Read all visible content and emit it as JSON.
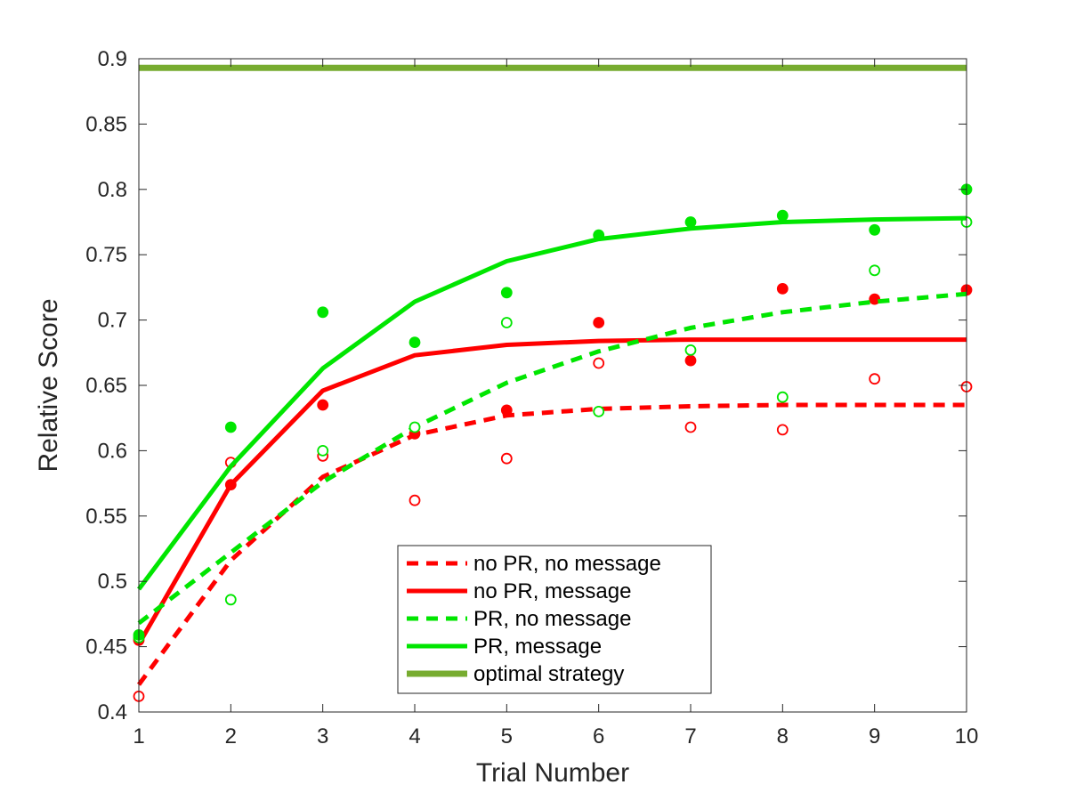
{
  "chart_data": {
    "type": "line",
    "xlabel": "Trial Number",
    "ylabel": "Relative Score",
    "xlim": [
      1,
      10
    ],
    "ylim": [
      0.4,
      0.9
    ],
    "xticks": [
      "1",
      "2",
      "3",
      "4",
      "5",
      "6",
      "7",
      "8",
      "9",
      "10"
    ],
    "yticks": [
      "0.4",
      "0.45",
      "0.5",
      "0.55",
      "0.6",
      "0.65",
      "0.7",
      "0.75",
      "0.8",
      "0.85",
      "0.9"
    ],
    "grid": false,
    "legend_position": "bottom-center",
    "x": [
      1,
      2,
      3,
      4,
      5,
      6,
      7,
      8,
      9,
      10
    ],
    "series": [
      {
        "name": "no PR, no message",
        "color": "#ff0000",
        "dashed": true,
        "marker": "open",
        "fit": [
          0.421,
          0.516,
          0.58,
          0.612,
          0.627,
          0.632,
          0.634,
          0.635,
          0.635,
          0.635
        ],
        "points": [
          0.412,
          0.591,
          0.596,
          0.562,
          0.594,
          0.667,
          0.618,
          0.616,
          0.655,
          0.649
        ]
      },
      {
        "name": "no PR, message",
        "color": "#ff0000",
        "dashed": false,
        "marker": "filled",
        "fit": [
          0.452,
          0.574,
          0.646,
          0.673,
          0.681,
          0.684,
          0.685,
          0.685,
          0.685,
          0.685
        ],
        "points": [
          0.455,
          0.574,
          0.635,
          0.613,
          0.631,
          0.698,
          0.669,
          0.724,
          0.716,
          0.723
        ]
      },
      {
        "name": "PR, no message",
        "color": "#00e600",
        "dashed": true,
        "marker": "open",
        "fit": [
          0.468,
          0.522,
          0.576,
          0.618,
          0.652,
          0.676,
          0.694,
          0.706,
          0.714,
          0.72
        ],
        "points": [
          0.457,
          0.486,
          0.6,
          0.618,
          0.698,
          0.63,
          0.677,
          0.641,
          0.738,
          0.775
        ]
      },
      {
        "name": "PR, message",
        "color": "#00e600",
        "dashed": false,
        "marker": "filled",
        "fit": [
          0.494,
          0.588,
          0.663,
          0.714,
          0.745,
          0.762,
          0.77,
          0.775,
          0.777,
          0.778
        ],
        "points": [
          0.459,
          0.618,
          0.706,
          0.683,
          0.721,
          0.765,
          0.775,
          0.78,
          0.769,
          0.8
        ]
      },
      {
        "name": "optimal strategy",
        "color": "#77ac30",
        "dashed": false,
        "marker": "none",
        "fit": [
          0.893,
          0.893,
          0.893,
          0.893,
          0.893,
          0.893,
          0.893,
          0.893,
          0.893,
          0.893
        ],
        "points": []
      }
    ]
  }
}
